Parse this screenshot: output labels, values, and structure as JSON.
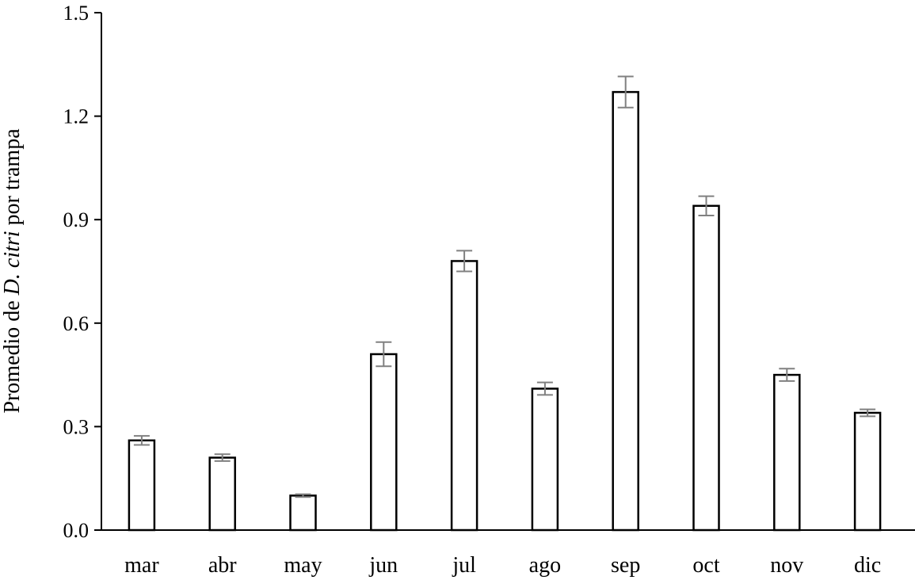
{
  "chart_data": {
    "type": "bar",
    "categories": [
      "mar",
      "abr",
      "may",
      "jun",
      "jul",
      "ago",
      "sep",
      "oct",
      "nov",
      "dic"
    ],
    "values": [
      0.26,
      0.21,
      0.1,
      0.51,
      0.78,
      0.41,
      1.27,
      0.94,
      0.45,
      0.34
    ],
    "error": [
      0.013,
      0.01,
      0.004,
      0.035,
      0.03,
      0.018,
      0.045,
      0.028,
      0.018,
      0.01
    ],
    "yticks": [
      "0.0",
      "0.3",
      "0.6",
      "0.9",
      "1.2",
      "1.5"
    ],
    "ylim": [
      0,
      1.5
    ],
    "ylabel_prefix": "Promedio de ",
    "ylabel_italic": "D. citri",
    "ylabel_suffix": " por trampa",
    "xlabel": "",
    "grid": false,
    "colors": {
      "bar_fill": "#ffffff",
      "bar_stroke": "#000000",
      "error_bar": "#808080",
      "axis": "#000000"
    }
  }
}
